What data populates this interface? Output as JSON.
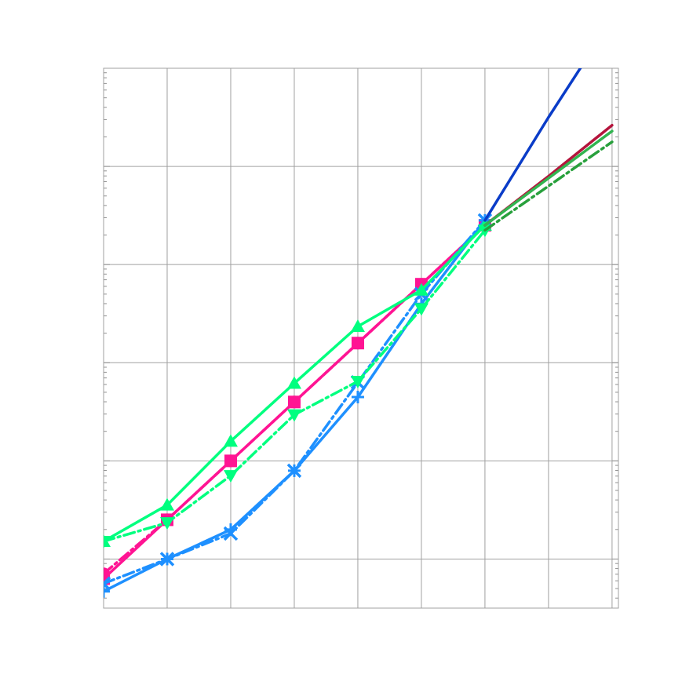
{
  "chart_data": {
    "type": "line",
    "title": "",
    "xlabel": "",
    "ylabel": "",
    "x_scale": "linear",
    "y_scale": "log",
    "grid": true,
    "legend": "none",
    "tick_labels_visible": false,
    "xlim": [
      0,
      8.1
    ],
    "ylim_log10": [
      -0.5,
      5.0
    ],
    "x": [
      0,
      1,
      2,
      3,
      4,
      5,
      6,
      7,
      8
    ],
    "series": [
      {
        "color": "#ff1493",
        "linestyle": "solid",
        "marker": "square",
        "values_log10": [
          -0.2,
          0.4,
          1.0,
          1.6,
          2.2,
          2.8,
          3.4,
          null,
          null
        ]
      },
      {
        "color": "#ff1493",
        "linestyle": "dashdot",
        "marker": "circle",
        "values_log10": [
          -0.15,
          0.4,
          1.0,
          1.6,
          2.2,
          2.8,
          3.4,
          null,
          null
        ]
      },
      {
        "color": "#1e90ff",
        "linestyle": "solid",
        "marker": "plus",
        "values_log10": [
          -0.33,
          0.0,
          0.3,
          0.9,
          1.65,
          2.6,
          3.45,
          null,
          null
        ]
      },
      {
        "color": "#1e90ff",
        "linestyle": "dashdot",
        "marker": "x",
        "values_log10": [
          -0.25,
          0.0,
          0.26,
          0.9,
          1.8,
          2.7,
          3.45,
          null,
          null
        ]
      },
      {
        "color": "#00ff7f",
        "linestyle": "solid",
        "marker": "triangle-up",
        "values_log10": [
          0.18,
          0.55,
          1.2,
          1.79,
          2.37,
          2.74,
          3.4,
          null,
          null
        ]
      },
      {
        "color": "#00ff7f",
        "linestyle": "dashdot",
        "marker": "triangle-down",
        "values_log10": [
          0.18,
          0.37,
          0.85,
          1.47,
          1.81,
          2.55,
          3.35,
          null,
          null
        ]
      },
      {
        "color": "#0a3cc8",
        "linestyle": "solid",
        "marker": "none",
        "values_log10": [
          null,
          null,
          null,
          null,
          null,
          null,
          3.45,
          4.5,
          5.5
        ]
      },
      {
        "color": "#b4143c",
        "linestyle": "solid",
        "marker": "none",
        "values_log10": [
          null,
          null,
          null,
          null,
          null,
          null,
          3.4,
          3.9,
          4.42
        ]
      },
      {
        "color": "#32b450",
        "linestyle": "solid",
        "marker": "none",
        "values_log10": [
          null,
          null,
          null,
          null,
          null,
          null,
          3.4,
          3.88,
          4.36
        ]
      },
      {
        "color": "#28a03c",
        "linestyle": "dashdot",
        "marker": "none",
        "values_log10": [
          null,
          null,
          null,
          null,
          null,
          null,
          3.35,
          3.8,
          4.25
        ]
      }
    ]
  }
}
